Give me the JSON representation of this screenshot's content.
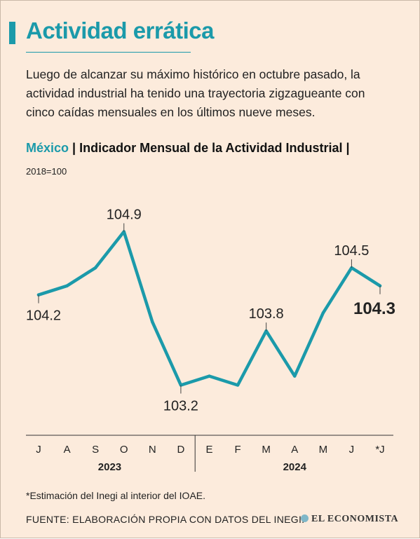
{
  "header": {
    "title": "Actividad errática",
    "subtitle": "Luego de alcanzar su máximo histórico en octubre pasado, la actividad industrial ha tenido una trayectoria zigzagueante con cinco caídas mensuales en los últimos nueve meses.",
    "country": "México",
    "separator": "|",
    "indicator": "Indicador Mensual de la Actividad Industrial",
    "unit": "2018=100"
  },
  "chart_data": {
    "type": "line",
    "x": [
      "J",
      "A",
      "S",
      "O",
      "N",
      "D",
      "E",
      "F",
      "M",
      "A",
      "M",
      "J",
      "*J"
    ],
    "years": [
      {
        "label": "2023",
        "from": 0,
        "to": 5
      },
      {
        "label": "2024",
        "from": 6,
        "to": 12
      }
    ],
    "series": [
      {
        "values": [
          104.2,
          104.3,
          104.5,
          104.9,
          103.9,
          103.2,
          103.3,
          103.2,
          103.8,
          103.3,
          104.0,
          104.5,
          104.3
        ]
      }
    ],
    "ylim": [
      102.8,
      105.3
    ],
    "annotations": [
      {
        "index": 0,
        "text": "104.2",
        "position": "below",
        "bold": false
      },
      {
        "index": 3,
        "text": "104.9",
        "position": "above",
        "bold": false
      },
      {
        "index": 5,
        "text": "103.2",
        "position": "below",
        "bold": false
      },
      {
        "index": 8,
        "text": "103.8",
        "position": "above",
        "bold": false
      },
      {
        "index": 11,
        "text": "104.5",
        "position": "above",
        "bold": false
      },
      {
        "index": 12,
        "text": "104.3",
        "position": "below",
        "bold": true
      }
    ],
    "line_color": "#1b9aaa",
    "grid": false
  },
  "footer": {
    "footnote": "*Estimación del Inegi al interior del IOAE.",
    "source": "FUENTE: ELABORACIÓN PROPIA CON DATOS DEL INEGI.",
    "brand": "EL ECONOMISTA",
    "brand_icon": "globe-icon"
  }
}
